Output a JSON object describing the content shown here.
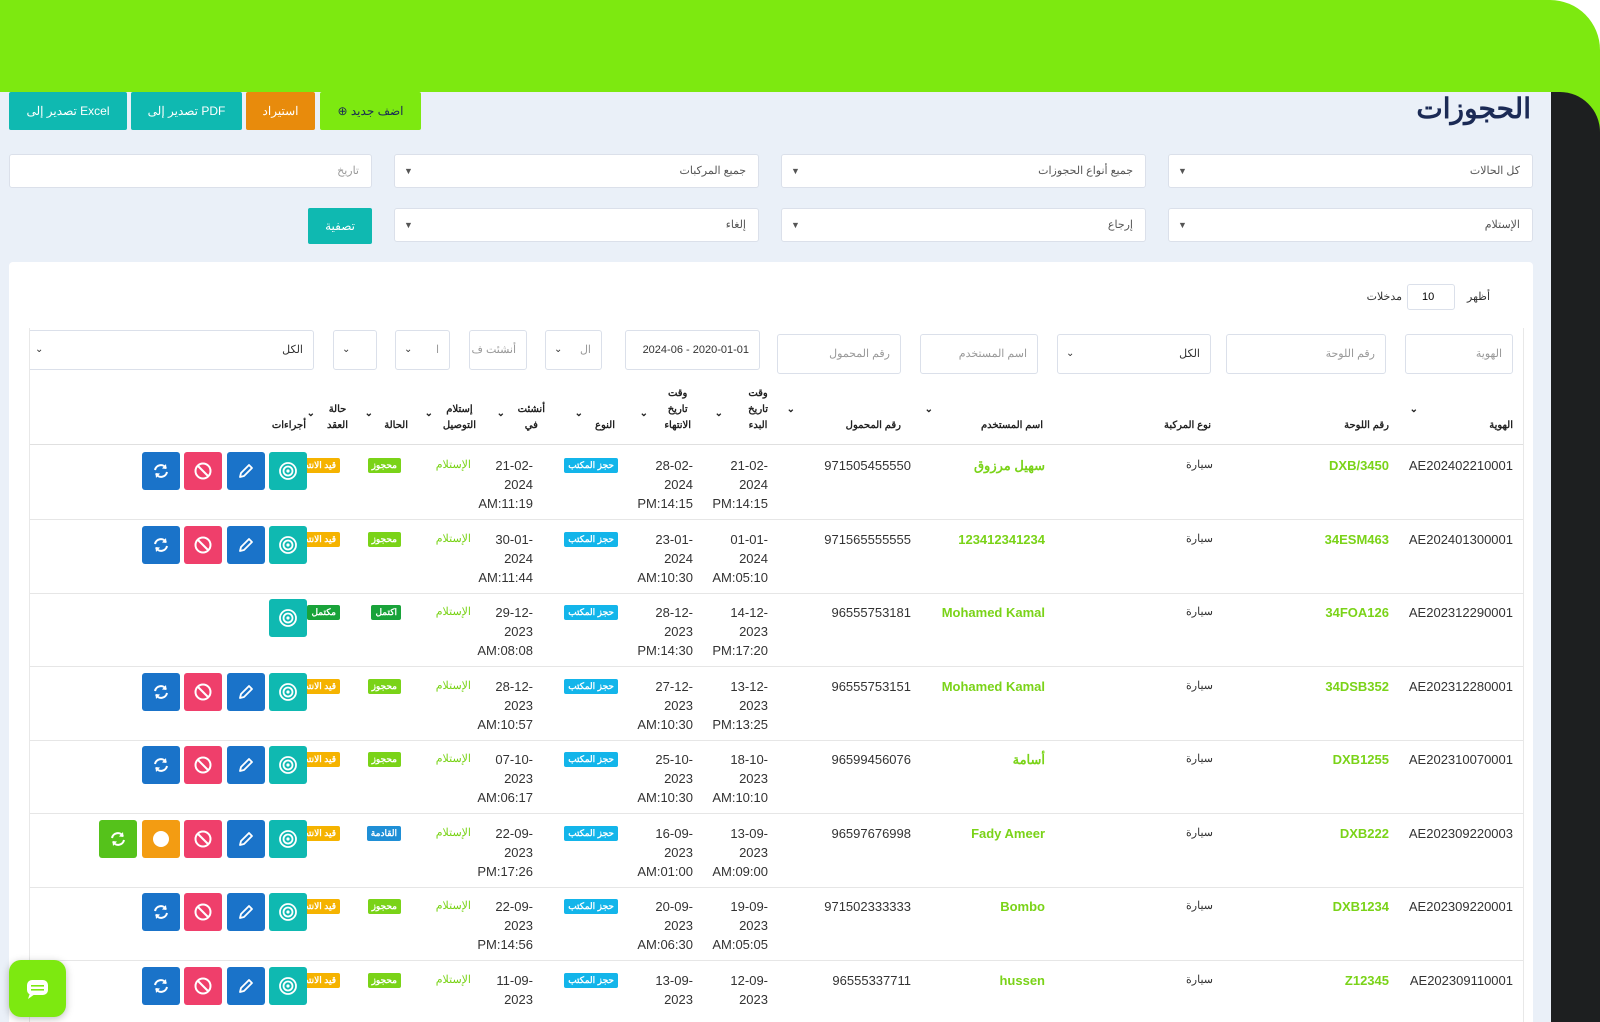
{
  "page": {
    "title": "الحجوزات",
    "buttons": {
      "add": "اضف جديد",
      "import": "استيراد",
      "pdf": "تصدير إلى PDF",
      "excel": "تصدير إلى Excel"
    }
  },
  "filters": {
    "status": "كل الحالات",
    "booking_type": "جميع أنواع الحجوزات",
    "vehicles": "جميع المركبات",
    "date_placeholder": "تاريخ",
    "pickup": "الإستلام",
    "return": "إرجاع",
    "cancel": "إلغاء",
    "filter_button": "تصفية"
  },
  "table_controls": {
    "show": "أظهر",
    "entries_value": "10",
    "entries": "مدخلات"
  },
  "search_row": {
    "id": "الهوية",
    "plate": "رقم اللوحة",
    "vehicle_type": "الكل",
    "user_name": "اسم المستخدم",
    "mobile": "رقم المحمول",
    "date_range": "2020-01-01 - 2024-06",
    "type": "ال",
    "created": "أنشئت ف",
    "delivery": "ا",
    "status": "",
    "all": "الكل"
  },
  "columns": {
    "id": "الهوية",
    "plate": "رقم اللوحة",
    "vehicle_type": "نوع المركبة",
    "user_name": "اسم المستخدم",
    "mobile": "رقم المحمول",
    "start_l1": "وقت",
    "start_l2": "تاريخ",
    "start_l3": "البدء",
    "end_l1": "وقت",
    "end_l2": "تاريخ",
    "end_l3": "الانتهاء",
    "type": "النوع",
    "created_l1": "أنشئت",
    "created_l2": "في",
    "delivery_l1": "إستلام",
    "delivery_l2": "التوصيل",
    "status": "الحالة",
    "contract_l1": "حالة",
    "contract_l2": "العقد",
    "actions": "أجراءات"
  },
  "rows": [
    {
      "id": "AE202402210001",
      "plate": "DXB/3450",
      "vehicle": "سيارة",
      "user": "سهيل مرزوق",
      "mobile": "971505455550",
      "start_d": "21-02-",
      "start_y": "2024",
      "start_t": "PM:14:15",
      "end_d": "28-02-",
      "end_y": "2024",
      "end_t": "PM:14:15",
      "type": "حجز المكتب",
      "created_d": "21-02-",
      "created_y": "2024",
      "created_t": "AM:11:19",
      "delivery": "الإستلام",
      "status": "محجوز",
      "contract": "قيد الانتظار",
      "status_color": "#7ad318",
      "contract_color": "#f5b300"
    },
    {
      "id": "AE202401300001",
      "plate": "34ESM463",
      "vehicle": "سيارة",
      "user": "123412341234",
      "mobile": "971565555555",
      "start_d": "01-01-",
      "start_y": "2024",
      "start_t": "AM:05:10",
      "end_d": "23-01-",
      "end_y": "2024",
      "end_t": "AM:10:30",
      "type": "حجز المكتب",
      "created_d": "30-01-",
      "created_y": "2024",
      "created_t": "AM:11:44",
      "delivery": "الإستلام",
      "status": "محجوز",
      "contract": "قيد الانتظار",
      "status_color": "#7ad318",
      "contract_color": "#f5b300"
    },
    {
      "id": "AE202312290001",
      "plate": "34FOA126",
      "vehicle": "سيارة",
      "user": "Mohamed Kamal",
      "mobile": "96555753181",
      "start_d": "14-12-",
      "start_y": "2023",
      "start_t": "PM:17:20",
      "end_d": "28-12-",
      "end_y": "2023",
      "end_t": "PM:14:30",
      "type": "حجز المكتب",
      "created_d": "29-12-",
      "created_y": "2023",
      "created_t": "AM:08:08",
      "delivery": "الإستلام",
      "status": "اكتمل",
      "contract": "مكتمل",
      "status_color": "#19a33a",
      "contract_color": "#19a33a"
    },
    {
      "id": "AE202312280001",
      "plate": "34DSB352",
      "vehicle": "سيارة",
      "user": "Mohamed Kamal",
      "mobile": "96555753151",
      "start_d": "13-12-",
      "start_y": "2023",
      "start_t": "PM:13:25",
      "end_d": "27-12-",
      "end_y": "2023",
      "end_t": "AM:10:30",
      "type": "حجز المكتب",
      "created_d": "28-12-",
      "created_y": "2023",
      "created_t": "AM:10:57",
      "delivery": "الإستلام",
      "status": "محجوز",
      "contract": "قيد الانتظار",
      "status_color": "#7ad318",
      "contract_color": "#f5b300"
    },
    {
      "id": "AE202310070001",
      "plate": "DXB1255",
      "vehicle": "سيارة",
      "user": "أسامة",
      "mobile": "96599456076",
      "start_d": "18-10-",
      "start_y": "2023",
      "start_t": "AM:10:10",
      "end_d": "25-10-",
      "end_y": "2023",
      "end_t": "AM:10:30",
      "type": "حجز المكتب",
      "created_d": "07-10-",
      "created_y": "2023",
      "created_t": "AM:06:17",
      "delivery": "الإستلام",
      "status": "محجوز",
      "contract": "قيد الانتظار",
      "status_color": "#7ad318",
      "contract_color": "#f5b300"
    },
    {
      "id": "AE202309220003",
      "plate": "DXB222",
      "vehicle": "سيارة",
      "user": "Fady Ameer",
      "mobile": "96597676998",
      "start_d": "13-09-",
      "start_y": "2023",
      "start_t": "AM:09:00",
      "end_d": "16-09-",
      "end_y": "2023",
      "end_t": "AM:01:00",
      "type": "حجز المكتب",
      "created_d": "22-09-",
      "created_y": "2023",
      "created_t": "PM:17:26",
      "delivery": "الإستلام",
      "status": "القادمة",
      "contract": "قيد الانتظار",
      "status_color": "#1f8fd6",
      "contract_color": "#f5b300"
    },
    {
      "id": "AE202309220001",
      "plate": "DXB1234",
      "vehicle": "سيارة",
      "user": "Bombo",
      "mobile": "971502333333",
      "start_d": "19-09-",
      "start_y": "2023",
      "start_t": "AM:05:05",
      "end_d": "20-09-",
      "end_y": "2023",
      "end_t": "AM:06:30",
      "type": "حجز المكتب",
      "created_d": "22-09-",
      "created_y": "2023",
      "created_t": "PM:14:56",
      "delivery": "الإستلام",
      "status": "محجوز",
      "contract": "قيد الانتظار",
      "status_color": "#7ad318",
      "contract_color": "#f5b300"
    },
    {
      "id": "AE202309110001",
      "plate": "Z12345",
      "vehicle": "سيارة",
      "user": "hussen",
      "mobile": "96555337711",
      "start_d": "12-09-",
      "start_y": "2023",
      "start_t": "",
      "end_d": "13-09-",
      "end_y": "2023",
      "end_t": "",
      "type": "حجز المكتب",
      "created_d": "11-09-",
      "created_y": "2023",
      "created_t": "",
      "delivery": "الإستلام",
      "status": "محجوز",
      "contract": "قيد الانتظار",
      "status_color": "#7ad318",
      "contract_color": "#f5b300"
    }
  ],
  "colors": {
    "brand_green": "#7de910",
    "teal": "#0fb9b1",
    "blue": "#1a73c9",
    "red": "#ef3f6b",
    "orange": "#f39c12",
    "type_badge": "#13b5ea"
  },
  "icons": [
    "target-icon",
    "edit-icon",
    "cancel-icon",
    "refresh-icon",
    "status-icon",
    "chat-icon",
    "plus-circle-icon",
    "chevron-down-icon"
  ]
}
